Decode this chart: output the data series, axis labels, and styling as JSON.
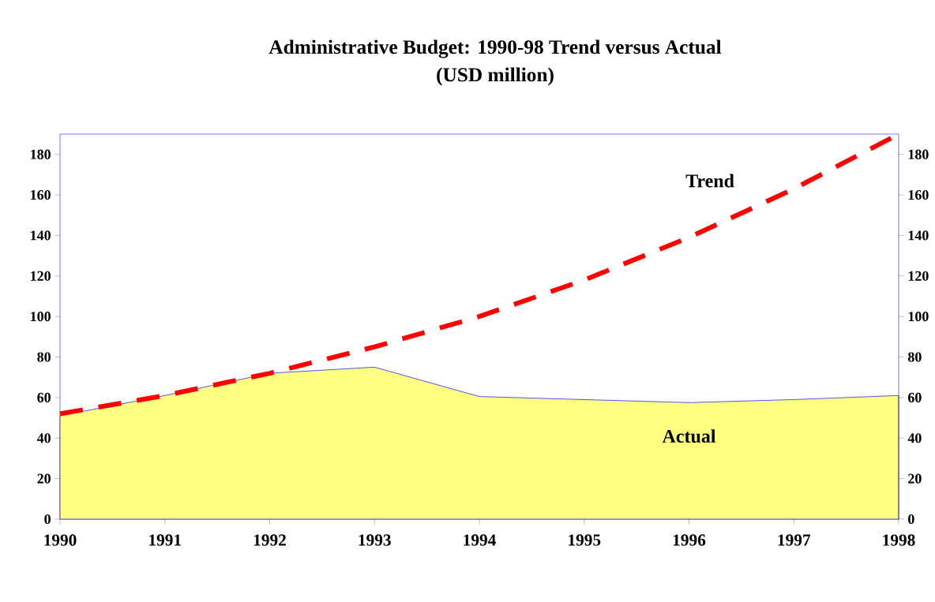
{
  "chart_data": {
    "type": "area",
    "title": "Administrative Budget:  1990-98 Trend versus Actual",
    "subtitle": "(USD million)",
    "x": [
      1990,
      1991,
      1992,
      1993,
      1994,
      1995,
      1996,
      1997,
      1998
    ],
    "series": [
      {
        "name": "Actual",
        "color": "#ffff80",
        "values": [
          51,
          61,
          72,
          75,
          60.5,
          59,
          57.5,
          59,
          61
        ]
      },
      {
        "name": "Trend",
        "type": "line",
        "line_style": "dashed",
        "color": "#ff0000",
        "values": [
          52,
          61,
          72,
          85,
          100,
          118,
          139,
          163,
          190
        ]
      }
    ],
    "xlim": [
      1990,
      1998
    ],
    "xticks": [
      1990,
      1991,
      1992,
      1993,
      1994,
      1995,
      1996,
      1997,
      1998
    ],
    "ylim": [
      0,
      190
    ],
    "yticks": [
      0,
      20,
      40,
      60,
      80,
      100,
      120,
      140,
      160,
      180
    ],
    "y2lim": [
      0,
      190
    ],
    "y2ticks": [
      0,
      20,
      40,
      60,
      80,
      100,
      120,
      140,
      160,
      180
    ]
  }
}
